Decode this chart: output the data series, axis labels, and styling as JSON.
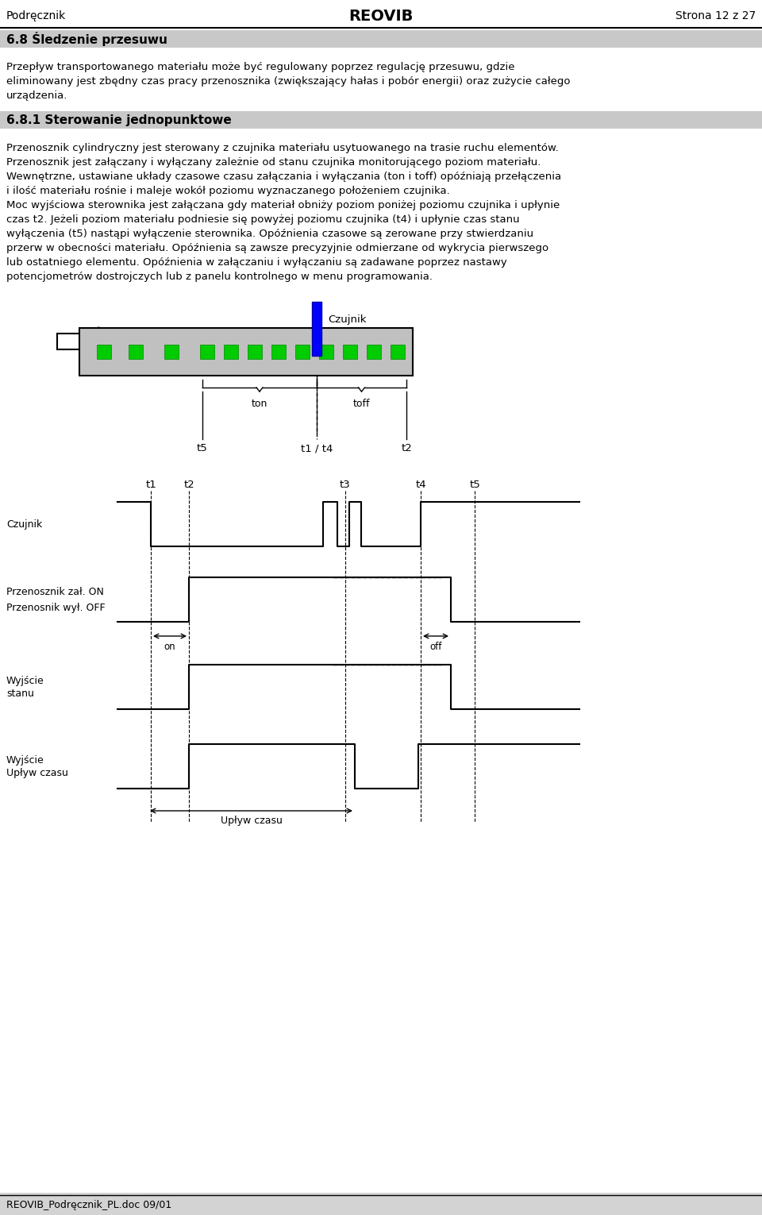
{
  "page_header_left": "Podręcznik",
  "page_header_center": "REOVIB",
  "page_header_right": "Strona 12 z 27",
  "section_title_1": "6.8 Śledzenie przesuwu",
  "para1_line1": "Przepływ transportowanego materiału może być regulowany poprzez regulację przesuwu, gdzie",
  "para1_line2": "eliminowany jest zbędny czas pracy przenosznika (zwiększający hałas i pobór energii) oraz zużycie całego",
  "para1_line3": "urządzenia.",
  "section_title_2": "6.8.1 Sterowanie jednopunktowe",
  "para2_lines": [
    "Przenosznik cylindryczny jest sterowany z czujnika materiału usytuowanego na trasie ruchu elementów.",
    "Przenosznik jest załączany i wyłączany zależnie od stanu czujnika monitorującego poziom materiału.",
    "Wewnętrzne, ustawiane układy czasowe czasu załączania i wyłączania (ton i toff) opóźniają przełączenia",
    "i ilość materiału rośnie i maleje wokół poziomu wyznaczanego położeniem czujnika.",
    "Moc wyjściowa sterownika jest załączana gdy materiał obniży poziom poniżej poziomu czujnika i upłynie",
    "czas t2. Jeżeli poziom materiału podniesie się powyżej poziomu czujnika (t4) i upłynie czas stanu",
    "wyłączenia (t5) nastąpi wyłączenie sterownika. Opóźnienia czasowe są zerowane przy stwierdzaniu",
    "przerw w obecności materiału. Opóźnienia są zawsze precyzyjnie odmierzane od wykrycia pierwszego",
    "lub ostatniego elementu. Opóźnienia w załączaniu i wyłączaniu są zadawane poprzez nastawy",
    "potencjometrów dostrojczych lub z panelu kontrolnego w menu programowania."
  ],
  "footer_left": "REOVIB_Podręcznik_PL.doc 09/01",
  "background_color": "#ffffff",
  "section_bg": "#c8c8c8"
}
